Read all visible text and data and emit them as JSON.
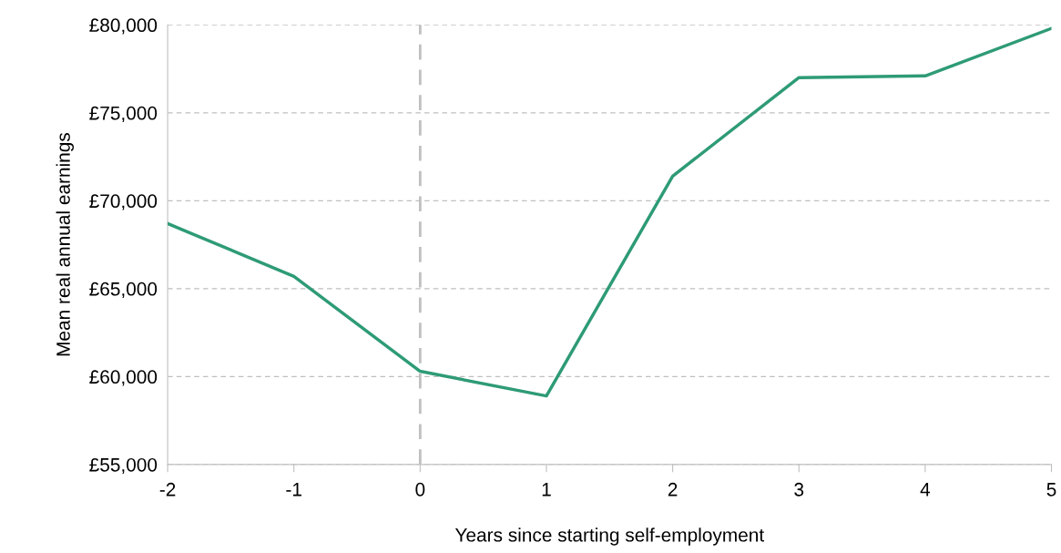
{
  "chart_data": {
    "type": "line",
    "xlabel": "Years since starting self-employment",
    "ylabel": "Mean real annual earnings",
    "x": [
      -2,
      -1,
      0,
      1,
      2,
      3,
      4,
      5
    ],
    "series": [
      {
        "color": "#2e9b76",
        "values": [
          68700,
          65700,
          60300,
          58900,
          71400,
          77000,
          77100,
          79800
        ]
      }
    ],
    "xlim": [
      -2,
      5
    ],
    "xticks": [
      -2,
      -1,
      0,
      1,
      2,
      3,
      4,
      5
    ],
    "ylim": [
      55000,
      80000
    ],
    "yticks": [
      {
        "value": 55000,
        "label": "£55,000"
      },
      {
        "value": 60000,
        "label": "£60,000"
      },
      {
        "value": 65000,
        "label": "£65,000"
      },
      {
        "value": 70000,
        "label": "£70,000"
      },
      {
        "value": 75000,
        "label": "£75,000"
      },
      {
        "value": 80000,
        "label": "£80,000"
      }
    ],
    "grid": "y",
    "marker": "none",
    "line_style": "solid",
    "ref_lines": [
      {
        "axis": "x",
        "value": 0,
        "color": "#bfbfbf",
        "line_style": "dashed"
      }
    ]
  }
}
